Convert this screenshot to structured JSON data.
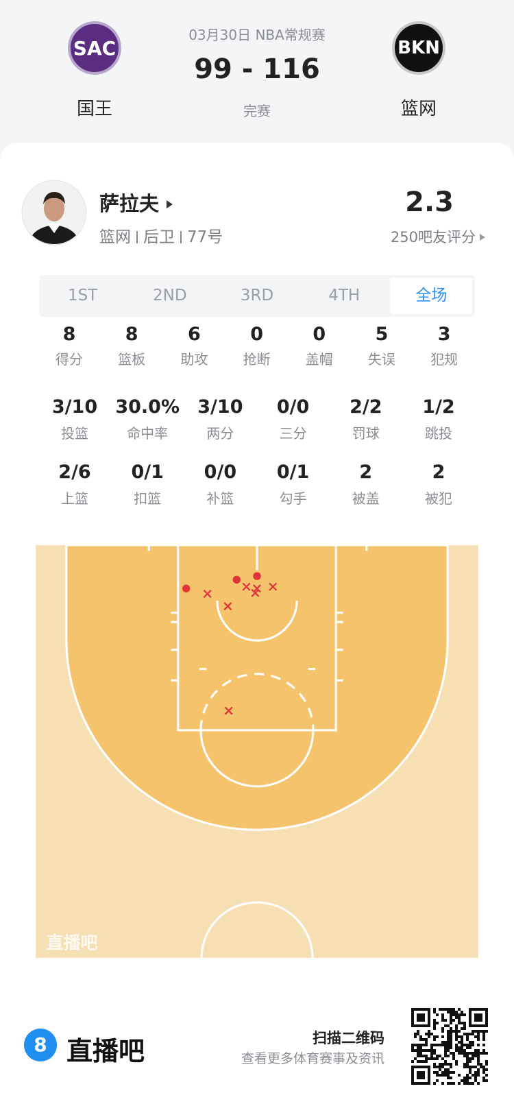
{
  "header": {
    "date": "03月30日 NBA常规赛",
    "score": "99 - 116",
    "status": "完赛",
    "home": {
      "logo": "SAC",
      "name": "国王"
    },
    "away": {
      "logo": "BKN",
      "name": "篮网"
    }
  },
  "player": {
    "name": "萨拉夫",
    "team": "篮网",
    "position": "后卫",
    "number": "77号",
    "rating": "2.3",
    "rating_label": "250吧友评分"
  },
  "tabs": {
    "items": [
      "1ST",
      "2ND",
      "3RD",
      "4TH",
      "全场"
    ],
    "active": 4
  },
  "stats": [
    [
      {
        "value": "8",
        "label": "得分"
      },
      {
        "value": "8",
        "label": "篮板"
      },
      {
        "value": "6",
        "label": "助攻"
      },
      {
        "value": "0",
        "label": "抢断"
      },
      {
        "value": "0",
        "label": "盖帽"
      },
      {
        "value": "5",
        "label": "失误"
      },
      {
        "value": "3",
        "label": "犯规"
      }
    ],
    [
      {
        "value": "3/10",
        "label": "投篮"
      },
      {
        "value": "30.0%",
        "label": "命中率"
      },
      {
        "value": "3/10",
        "label": "两分"
      },
      {
        "value": "0/0",
        "label": "三分"
      },
      {
        "value": "2/2",
        "label": "罚球"
      },
      {
        "value": "1/2",
        "label": "跳投"
      }
    ],
    [
      {
        "value": "2/6",
        "label": "上篮"
      },
      {
        "value": "0/1",
        "label": "扣篮"
      },
      {
        "value": "0/0",
        "label": "补篮"
      },
      {
        "value": "0/1",
        "label": "勾手"
      },
      {
        "value": "2",
        "label": "被盖"
      },
      {
        "value": "2",
        "label": "被犯"
      }
    ]
  ],
  "shot_chart": {
    "watermark": "直播吧",
    "color": "#e0343a",
    "shots": [
      {
        "x": -8.0,
        "y": 4.9,
        "made": true
      },
      {
        "x": -2.3,
        "y": 3.9,
        "made": true
      },
      {
        "x": 0.0,
        "y": 3.5,
        "made": true
      },
      {
        "x": -5.6,
        "y": 5.5,
        "made": false
      },
      {
        "x": -1.2,
        "y": 4.7,
        "made": false
      },
      {
        "x": 0.0,
        "y": 4.9,
        "made": false
      },
      {
        "x": -0.2,
        "y": 5.4,
        "made": false
      },
      {
        "x": 1.8,
        "y": 4.7,
        "made": false
      },
      {
        "x": -3.3,
        "y": 6.9,
        "made": false
      },
      {
        "x": -3.2,
        "y": 18.7,
        "made": false
      }
    ]
  },
  "footer": {
    "brand_icon": "8",
    "brand": "直播吧",
    "qr_title": "扫描二维码",
    "qr_subtitle": "查看更多体育赛事及资讯"
  }
}
